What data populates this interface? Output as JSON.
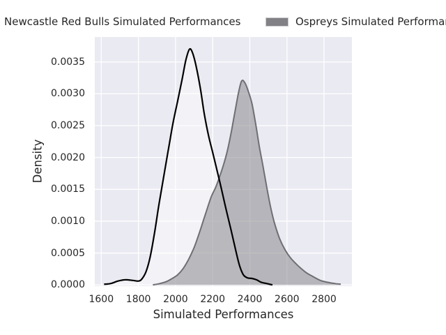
{
  "legend": {
    "newcastle_label": "Newcastle Red Bulls Simulated Performances",
    "ospreys_label": "Ospreys Simulated Performances",
    "ospreys_swatch_color": "#828286"
  },
  "chart_data": {
    "type": "area",
    "subtype": "kde-density",
    "title": "",
    "xlabel": "Simulated Performances",
    "ylabel": "Density",
    "x_ticks": [
      1600,
      1800,
      2000,
      2200,
      2400,
      2600,
      2800
    ],
    "y_ticks": [
      0,
      0.0005,
      0.001,
      0.0015,
      0.002,
      0.0025,
      0.003,
      0.0035
    ],
    "y_tick_labels": [
      "0.0000",
      "0.0005",
      "0.0010",
      "0.0015",
      "0.0020",
      "0.0025",
      "0.0030",
      "0.0035"
    ],
    "xlim": [
      1565,
      2950
    ],
    "ylim": [
      -2e-05,
      0.003892
    ],
    "grid": true,
    "legend_position": "top",
    "plot_bg_color": "#eaeaf2",
    "grid_color": "#ffffff",
    "series": [
      {
        "id": "ospreys",
        "name": "Ospreys Simulated Performances",
        "style": "area",
        "stroke": "#6e6e73",
        "stroke_width": 2,
        "fill": "rgba(127,127,132,0.5)",
        "points": [
          [
            1878,
            0.0
          ],
          [
            1915,
            2e-05
          ],
          [
            1950,
            5e-05
          ],
          [
            1982,
            0.0001
          ],
          [
            2012,
            0.00016
          ],
          [
            2042,
            0.00026
          ],
          [
            2072,
            0.00041
          ],
          [
            2102,
            0.0006
          ],
          [
            2132,
            0.00085
          ],
          [
            2162,
            0.00112
          ],
          [
            2192,
            0.00138
          ],
          [
            2216,
            0.00153
          ],
          [
            2240,
            0.00172
          ],
          [
            2262,
            0.00192
          ],
          [
            2282,
            0.00214
          ],
          [
            2302,
            0.00243
          ],
          [
            2322,
            0.00275
          ],
          [
            2340,
            0.00303
          ],
          [
            2356,
            0.0032
          ],
          [
            2372,
            0.00318
          ],
          [
            2392,
            0.00304
          ],
          [
            2412,
            0.00284
          ],
          [
            2432,
            0.00252
          ],
          [
            2452,
            0.00216
          ],
          [
            2472,
            0.00185
          ],
          [
            2492,
            0.00152
          ],
          [
            2512,
            0.00122
          ],
          [
            2532,
            0.00098
          ],
          [
            2560,
            0.00073
          ],
          [
            2590,
            0.00055
          ],
          [
            2620,
            0.00042
          ],
          [
            2660,
            0.0003
          ],
          [
            2700,
            0.0002
          ],
          [
            2740,
            0.00013
          ],
          [
            2780,
            7e-05
          ],
          [
            2820,
            4e-05
          ],
          [
            2858,
            2e-05
          ],
          [
            2890,
            1e-05
          ]
        ]
      },
      {
        "id": "newcastle",
        "name": "Newcastle Red Bulls Simulated Performances",
        "style": "line",
        "stroke": "#000000",
        "stroke_width": 2.2,
        "fill": "rgba(255,255,255,0.4)",
        "points": [
          [
            1615,
            1e-05
          ],
          [
            1650,
            2e-05
          ],
          [
            1690,
            6e-05
          ],
          [
            1730,
            8e-05
          ],
          [
            1770,
            7e-05
          ],
          [
            1800,
            6e-05
          ],
          [
            1818,
            9e-05
          ],
          [
            1840,
            0.0002
          ],
          [
            1862,
            0.00042
          ],
          [
            1886,
            0.0008
          ],
          [
            1910,
            0.00125
          ],
          [
            1935,
            0.00168
          ],
          [
            1960,
            0.0021
          ],
          [
            1985,
            0.00252
          ],
          [
            2010,
            0.00287
          ],
          [
            2035,
            0.00322
          ],
          [
            2055,
            0.00352
          ],
          [
            2075,
            0.0037
          ],
          [
            2092,
            0.00364
          ],
          [
            2112,
            0.00342
          ],
          [
            2135,
            0.00306
          ],
          [
            2155,
            0.00268
          ],
          [
            2177,
            0.00235
          ],
          [
            2200,
            0.00208
          ],
          [
            2225,
            0.00178
          ],
          [
            2250,
            0.00147
          ],
          [
            2275,
            0.00115
          ],
          [
            2300,
            0.00085
          ],
          [
            2325,
            0.00053
          ],
          [
            2345,
            0.0003
          ],
          [
            2365,
            0.00016
          ],
          [
            2387,
            0.00011
          ],
          [
            2412,
            0.0001
          ],
          [
            2436,
            8e-05
          ],
          [
            2462,
            4e-05
          ],
          [
            2492,
            2e-05
          ],
          [
            2522,
            0.0
          ]
        ]
      }
    ]
  }
}
